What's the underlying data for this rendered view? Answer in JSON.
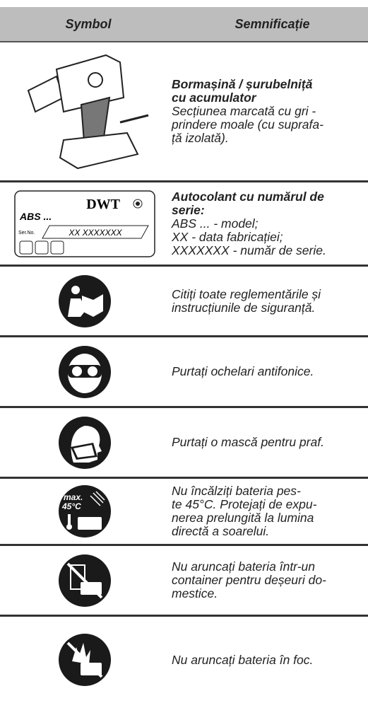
{
  "header": {
    "symbol": "Symbol",
    "meaning": "Semnificație"
  },
  "rows": [
    {
      "title": [
        "Bormașină / șurubelniță",
        "cu acumulator"
      ],
      "lines": [
        "Secțiunea marcată cu gri -",
        "prindere moale (cu suprafa-",
        "ță izolată)."
      ]
    },
    {
      "icon_texts": {
        "brand": "DWT",
        "model": "ABS ...",
        "serial_label": "Ser.No.",
        "serial": "XX XXXXXXX"
      },
      "title": [
        "Autocolant cu numărul de",
        "serie:"
      ],
      "lines": [
        "ABS ... - model;",
        "XX - data fabricației;",
        "XXXXXXX - număr de serie."
      ]
    },
    {
      "lines": [
        "Citiți toate reglementările și",
        "instrucțiunile de siguranță."
      ]
    },
    {
      "lines": [
        "Purtați ochelari antifonice."
      ]
    },
    {
      "lines": [
        "Purtați o mască pentru praf."
      ]
    },
    {
      "icon_texts": {
        "max": "max.",
        "temp": "45°C"
      },
      "lines": [
        "Nu încălziți bateria pes-",
        "te 45°C. Protejați de expu-",
        "nerea prelungită la lumina",
        "directă a soarelui."
      ]
    },
    {
      "lines": [
        "Nu aruncați bateria într-un",
        "container pentru deșeuri do-",
        "mestice."
      ]
    },
    {
      "lines": [
        "Nu aruncați bateria în foc."
      ]
    }
  ]
}
